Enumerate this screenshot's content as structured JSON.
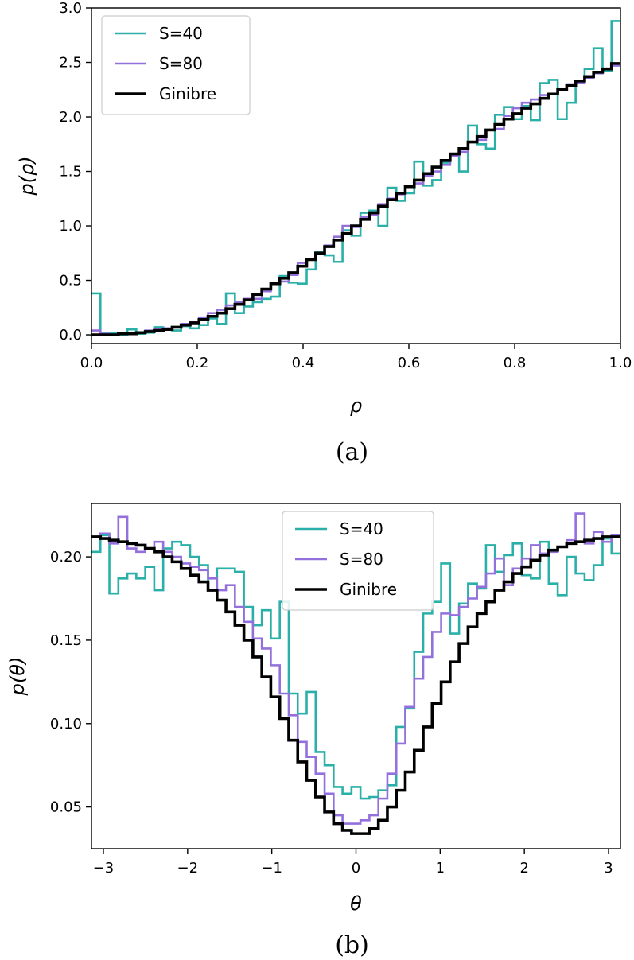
{
  "chart_data": [
    {
      "type": "line",
      "style": "step",
      "caption": "(a)",
      "xlabel": "ρ",
      "ylabel": "p(ρ)",
      "xlim": [
        0,
        1
      ],
      "ylim": [
        -0.08,
        3.0
      ],
      "xticks": [
        0,
        0.2,
        0.4,
        0.6,
        0.8,
        1.0
      ],
      "xtick_labels": [
        "0.0",
        "0.2",
        "0.4",
        "0.6",
        "0.8",
        "1.0"
      ],
      "yticks": [
        0,
        0.5,
        1.0,
        1.5,
        2.0,
        2.5,
        3.0
      ],
      "ytick_labels": [
        "0.0",
        "0.5",
        "1.0",
        "1.5",
        "2.0",
        "2.5",
        "3.0"
      ],
      "legend_position": "upper-left",
      "series": [
        {
          "name": "S=40",
          "color": "#2ab0a8",
          "values": [
            0.38,
            0.02,
            0.02,
            0.0,
            0.05,
            0.01,
            0.02,
            0.07,
            0.05,
            0.04,
            0.08,
            0.06,
            0.09,
            0.15,
            0.1,
            0.38,
            0.2,
            0.26,
            0.3,
            0.33,
            0.35,
            0.54,
            0.48,
            0.47,
            0.6,
            0.76,
            0.73,
            0.67,
            0.96,
            0.91,
            1.12,
            1.14,
            1.0,
            1.35,
            1.23,
            1.3,
            1.59,
            1.37,
            1.42,
            1.58,
            1.64,
            1.5,
            1.92,
            1.75,
            1.71,
            2.02,
            2.09,
            1.98,
            2.1,
            1.97,
            2.31,
            2.34,
            1.98,
            2.13,
            2.31,
            2.44,
            2.63,
            2.42,
            2.88
          ]
        },
        {
          "name": "S=80",
          "color": "#9370db",
          "values": [
            0.04,
            0.01,
            0.0,
            0.02,
            0.01,
            0.02,
            0.04,
            0.05,
            0.06,
            0.07,
            0.1,
            0.12,
            0.16,
            0.2,
            0.23,
            0.27,
            0.3,
            0.33,
            0.33,
            0.4,
            0.47,
            0.49,
            0.55,
            0.66,
            0.69,
            0.75,
            0.82,
            0.9,
            1.0,
            0.99,
            1.08,
            1.1,
            1.2,
            1.25,
            1.29,
            1.36,
            1.39,
            1.46,
            1.5,
            1.56,
            1.64,
            1.68,
            1.77,
            1.79,
            1.88,
            1.89,
            2.01,
            2.08,
            2.13,
            2.16,
            2.2,
            2.21,
            2.25,
            2.3,
            2.31,
            2.36,
            2.4,
            2.44,
            2.47
          ]
        },
        {
          "name": "Ginibre",
          "color": "#000000",
          "values": [
            0.0,
            0.0,
            0.0,
            0.01,
            0.01,
            0.02,
            0.03,
            0.04,
            0.05,
            0.07,
            0.09,
            0.11,
            0.14,
            0.17,
            0.2,
            0.24,
            0.28,
            0.32,
            0.37,
            0.42,
            0.47,
            0.52,
            0.57,
            0.63,
            0.69,
            0.75,
            0.81,
            0.87,
            0.93,
            1.0,
            1.06,
            1.12,
            1.18,
            1.24,
            1.3,
            1.36,
            1.42,
            1.48,
            1.54,
            1.6,
            1.66,
            1.71,
            1.77,
            1.82,
            1.88,
            1.93,
            1.98,
            2.03,
            2.08,
            2.12,
            2.17,
            2.21,
            2.25,
            2.29,
            2.33,
            2.37,
            2.41,
            2.44,
            2.49
          ]
        }
      ]
    },
    {
      "type": "line",
      "style": "step",
      "caption": "(b)",
      "xlabel": "θ",
      "ylabel": "p(θ)",
      "xlim": [
        -3.1416,
        3.1416
      ],
      "ylim": [
        0.025,
        0.232
      ],
      "xticks": [
        -3,
        -2,
        -1,
        0,
        1,
        2,
        3
      ],
      "xtick_labels": [
        "−3",
        "−2",
        "−1",
        "0",
        "1",
        "2",
        "3"
      ],
      "yticks": [
        0.05,
        0.1,
        0.15,
        0.2
      ],
      "ytick_labels": [
        "0.05",
        "0.10",
        "0.15",
        "0.20"
      ],
      "legend_position": "upper-center",
      "series": [
        {
          "name": "S=40",
          "color": "#2ab0a8",
          "values": [
            0.203,
            0.213,
            0.178,
            0.187,
            0.19,
            0.187,
            0.194,
            0.18,
            0.205,
            0.209,
            0.207,
            0.2,
            0.195,
            0.18,
            0.193,
            0.193,
            0.191,
            0.17,
            0.159,
            0.168,
            0.151,
            0.173,
            0.118,
            0.106,
            0.119,
            0.083,
            0.075,
            0.062,
            0.058,
            0.062,
            0.055,
            0.056,
            0.06,
            0.063,
            0.098,
            0.109,
            0.143,
            0.166,
            0.173,
            0.196,
            0.154,
            0.172,
            0.184,
            0.181,
            0.207,
            0.191,
            0.201,
            0.208,
            0.189,
            0.187,
            0.209,
            0.184,
            0.177,
            0.2,
            0.19,
            0.186,
            0.195,
            0.211,
            0.202
          ]
        },
        {
          "name": "S=80",
          "color": "#9370db",
          "values": [
            0.212,
            0.214,
            0.208,
            0.224,
            0.205,
            0.203,
            0.205,
            0.209,
            0.203,
            0.2,
            0.196,
            0.194,
            0.192,
            0.187,
            0.18,
            0.183,
            0.17,
            0.161,
            0.151,
            0.145,
            0.135,
            0.118,
            0.105,
            0.089,
            0.08,
            0.07,
            0.058,
            0.045,
            0.04,
            0.04,
            0.042,
            0.045,
            0.055,
            0.07,
            0.088,
            0.11,
            0.127,
            0.14,
            0.155,
            0.166,
            0.165,
            0.17,
            0.175,
            0.182,
            0.19,
            0.199,
            0.183,
            0.193,
            0.199,
            0.207,
            0.202,
            0.203,
            0.206,
            0.21,
            0.226,
            0.208,
            0.215,
            0.209,
            0.213
          ]
        },
        {
          "name": "Ginibre",
          "color": "#000000",
          "values": [
            0.212,
            0.211,
            0.21,
            0.209,
            0.208,
            0.207,
            0.205,
            0.203,
            0.2,
            0.197,
            0.193,
            0.189,
            0.185,
            0.18,
            0.174,
            0.167,
            0.159,
            0.15,
            0.14,
            0.128,
            0.116,
            0.103,
            0.09,
            0.077,
            0.066,
            0.056,
            0.047,
            0.04,
            0.036,
            0.034,
            0.034,
            0.037,
            0.042,
            0.05,
            0.06,
            0.071,
            0.084,
            0.098,
            0.112,
            0.125,
            0.137,
            0.148,
            0.158,
            0.166,
            0.173,
            0.18,
            0.185,
            0.19,
            0.194,
            0.198,
            0.201,
            0.204,
            0.206,
            0.208,
            0.209,
            0.21,
            0.211,
            0.212,
            0.212
          ]
        }
      ]
    }
  ]
}
